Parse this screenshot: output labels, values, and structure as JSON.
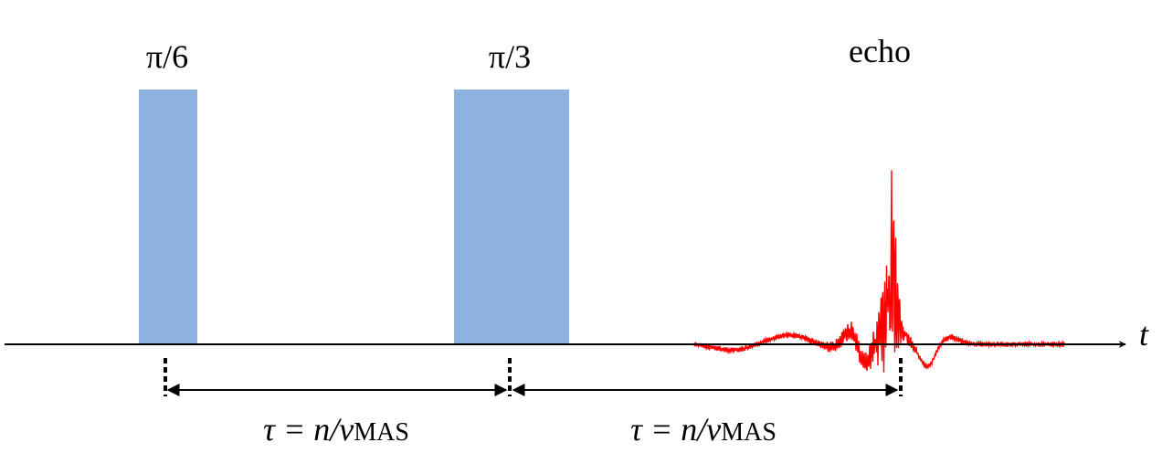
{
  "pulses": [
    {
      "label": "π/6"
    },
    {
      "label": "π/3"
    }
  ],
  "echo": {
    "label": "echo"
  },
  "axis": {
    "label": "t"
  },
  "delays": [
    {
      "label": "τ = n/ν",
      "subscript": "MAS"
    },
    {
      "label": "τ = n/ν",
      "subscript": "MAS"
    }
  ]
}
